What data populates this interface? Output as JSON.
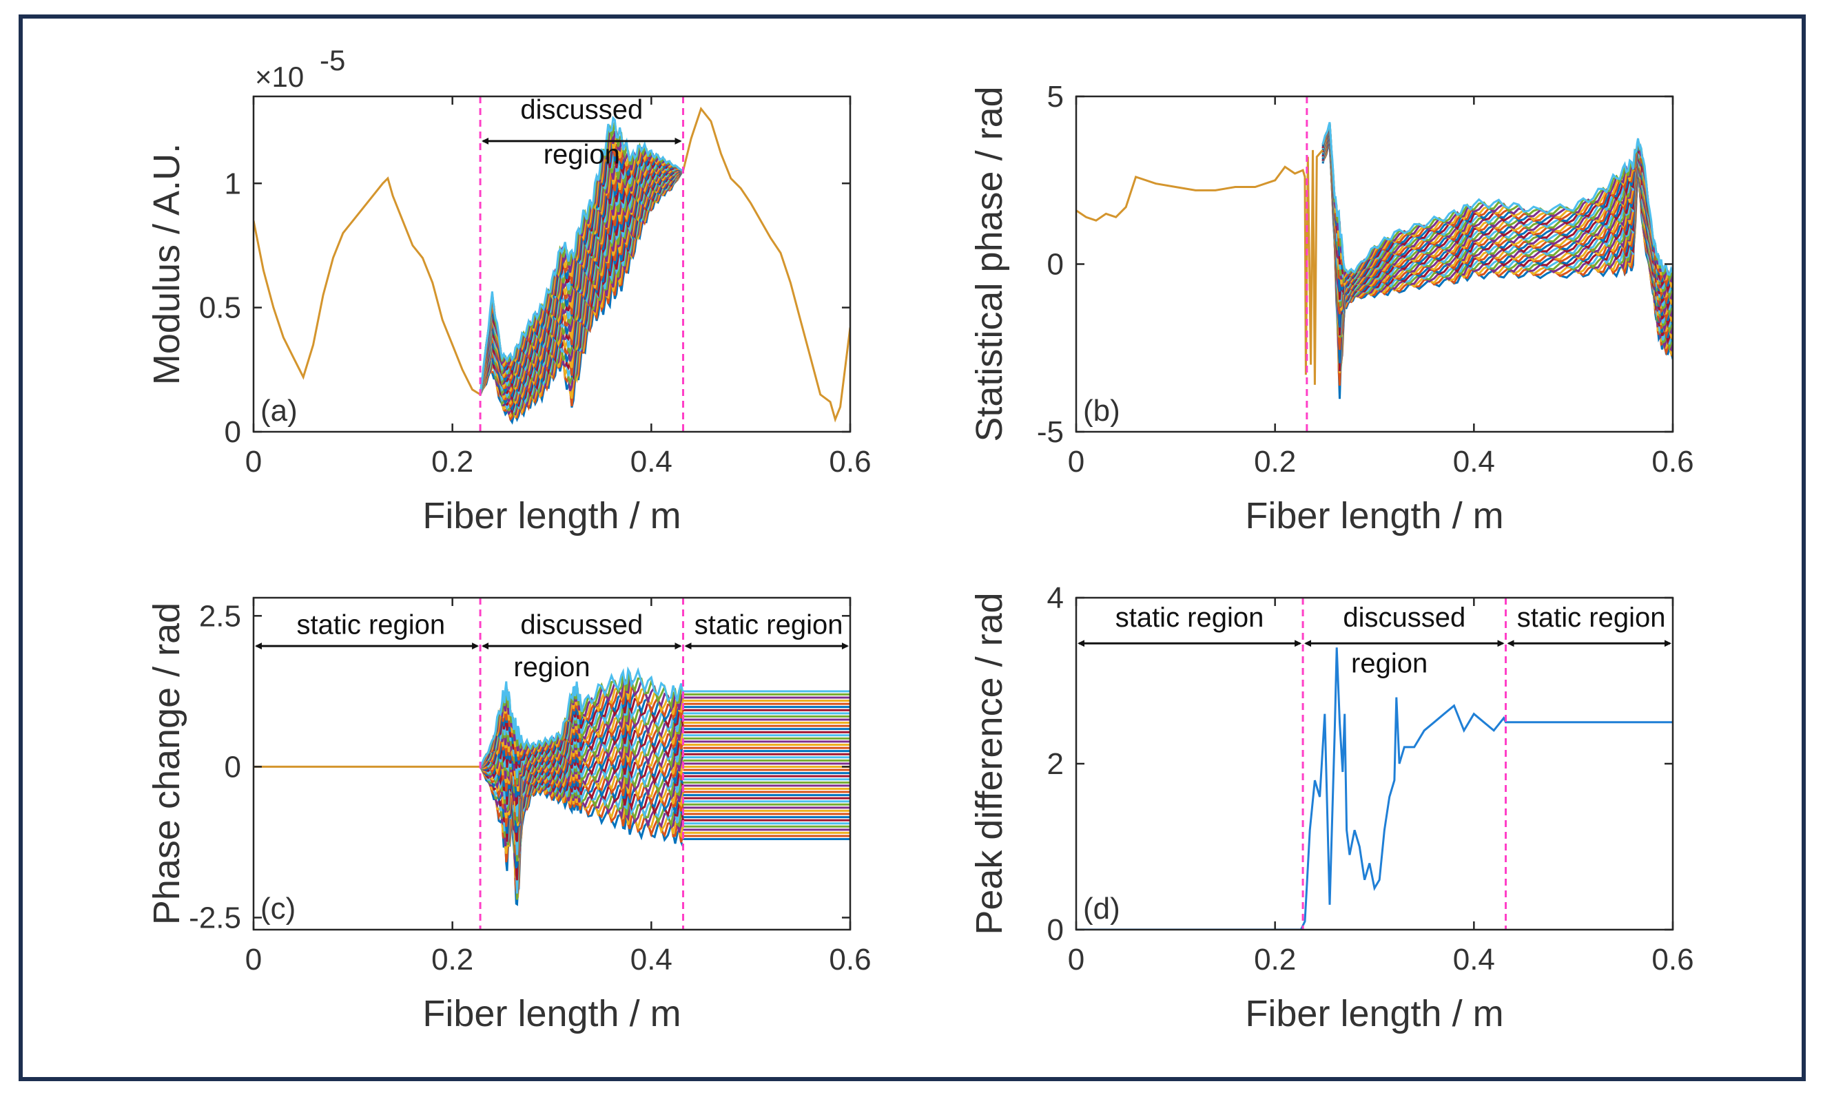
{
  "figure": {
    "colors": {
      "frame": "#1d2f50",
      "axis": "#262626",
      "divider": "#ff3fc7",
      "single_trace": "#d4952d",
      "peak_trace": "#1f7fd6",
      "palette": [
        "#0072BD",
        "#D95319",
        "#EDB120",
        "#7E2F8E",
        "#77AC30",
        "#4DBEEE",
        "#A2142F"
      ]
    }
  },
  "chart_data": [
    {
      "id": "a",
      "type": "line",
      "panel_tag": "(a)",
      "xlabel": "Fiber length / m",
      "ylabel": "Modulus / A.U.",
      "exponent_label": "×10",
      "exponent_power": "-5",
      "xlim": [
        0,
        0.6
      ],
      "ylim": [
        0,
        1.35
      ],
      "xticks": [
        0,
        0.2,
        0.4,
        0.6
      ],
      "xtick_labels": [
        "0",
        "0.2",
        "0.4",
        "0.6"
      ],
      "yticks": [
        0,
        0.5,
        1
      ],
      "ytick_labels": [
        "0",
        "0.5",
        "1"
      ],
      "dividers": [
        0.228,
        0.432
      ],
      "annotations": [
        {
          "text": "discussed",
          "x": 0.33,
          "y": 1.26
        },
        {
          "text": "region",
          "x": 0.33,
          "y": 1.08
        }
      ],
      "arrows": [
        {
          "x1": 0.228,
          "x2": 0.432,
          "y": 1.17
        }
      ],
      "single_trace": {
        "x": [
          0,
          0.01,
          0.02,
          0.03,
          0.04,
          0.05,
          0.06,
          0.07,
          0.08,
          0.09,
          0.1,
          0.11,
          0.12,
          0.13,
          0.135,
          0.14,
          0.15,
          0.16,
          0.17,
          0.18,
          0.19,
          0.2,
          0.21,
          0.22,
          0.228
        ],
        "y": [
          0.85,
          0.65,
          0.5,
          0.38,
          0.3,
          0.22,
          0.35,
          0.55,
          0.7,
          0.8,
          0.85,
          0.9,
          0.95,
          1.0,
          1.02,
          0.95,
          0.85,
          0.75,
          0.7,
          0.6,
          0.45,
          0.35,
          0.25,
          0.17,
          0.15
        ]
      },
      "band": {
        "x": [
          0.228,
          0.24,
          0.25,
          0.26,
          0.27,
          0.28,
          0.29,
          0.3,
          0.31,
          0.32,
          0.33,
          0.34,
          0.35,
          0.36,
          0.37,
          0.38,
          0.39,
          0.4,
          0.41,
          0.42,
          0.432
        ],
        "upper": [
          0.15,
          0.55,
          0.3,
          0.3,
          0.38,
          0.45,
          0.5,
          0.6,
          0.75,
          0.7,
          0.85,
          0.92,
          1.1,
          1.25,
          1.18,
          1.1,
          1.15,
          1.12,
          1.1,
          1.08,
          1.05
        ],
        "lower": [
          0.15,
          0.25,
          0.1,
          0.05,
          0.08,
          0.12,
          0.15,
          0.22,
          0.28,
          0.12,
          0.3,
          0.45,
          0.5,
          0.55,
          0.6,
          0.7,
          0.82,
          0.9,
          0.95,
          0.98,
          1.05
        ]
      },
      "tail_trace": {
        "x": [
          0.432,
          0.44,
          0.45,
          0.46,
          0.47,
          0.48,
          0.49,
          0.5,
          0.51,
          0.52,
          0.53,
          0.54,
          0.55,
          0.56,
          0.57,
          0.58,
          0.585,
          0.59,
          0.6
        ],
        "y": [
          1.05,
          1.18,
          1.3,
          1.25,
          1.12,
          1.02,
          0.98,
          0.92,
          0.85,
          0.78,
          0.72,
          0.6,
          0.45,
          0.3,
          0.15,
          0.12,
          0.05,
          0.1,
          0.42
        ]
      }
    },
    {
      "id": "b",
      "type": "line",
      "panel_tag": "(b)",
      "xlabel": "Fiber length / m",
      "ylabel": "Statistical phase / rad",
      "xlim": [
        0,
        0.6
      ],
      "ylim": [
        -5,
        5
      ],
      "xticks": [
        0,
        0.2,
        0.4,
        0.6
      ],
      "xtick_labels": [
        "0",
        "0.2",
        "0.4",
        "0.6"
      ],
      "yticks": [
        -5,
        0,
        5
      ],
      "ytick_labels": [
        "-5",
        "0",
        "5"
      ],
      "dividers": [
        0.232
      ],
      "single_trace": {
        "x": [
          0,
          0.01,
          0.02,
          0.03,
          0.04,
          0.05,
          0.06,
          0.08,
          0.1,
          0.12,
          0.14,
          0.16,
          0.18,
          0.2,
          0.21,
          0.22,
          0.228,
          0.23,
          0.231,
          0.233,
          0.236,
          0.238,
          0.24,
          0.242,
          0.245,
          0.248
        ],
        "y": [
          1.6,
          1.4,
          1.3,
          1.5,
          1.4,
          1.7,
          2.6,
          2.4,
          2.3,
          2.2,
          2.2,
          2.3,
          2.3,
          2.5,
          2.9,
          2.7,
          2.8,
          2.6,
          -3.3,
          3.2,
          -3.0,
          3.4,
          -3.6,
          3.2,
          3.3,
          3.4
        ]
      },
      "band": {
        "x": [
          0.248,
          0.255,
          0.26,
          0.265,
          0.27,
          0.28,
          0.3,
          0.32,
          0.35,
          0.38,
          0.4,
          0.43,
          0.46,
          0.5,
          0.53,
          0.55,
          0.56,
          0.565,
          0.57,
          0.58,
          0.585,
          0.59,
          0.6
        ],
        "upper": [
          3.6,
          4.2,
          2.0,
          1.2,
          -0.2,
          -0.2,
          0.5,
          0.9,
          1.2,
          1.5,
          1.8,
          1.8,
          1.6,
          1.7,
          2.2,
          2.8,
          3.0,
          3.7,
          3.2,
          0.8,
          0.2,
          -0.1,
          -0.3
        ],
        "lower": [
          3.0,
          3.6,
          0.5,
          -3.8,
          -1.3,
          -1.0,
          -0.9,
          -0.8,
          -0.6,
          -0.5,
          -0.3,
          -0.3,
          -0.3,
          -0.3,
          -0.2,
          -0.2,
          0.0,
          2.8,
          1.0,
          -0.8,
          -2.0,
          -2.5,
          -2.7
        ]
      }
    },
    {
      "id": "c",
      "type": "line",
      "panel_tag": "(c)",
      "xlabel": "Fiber length / m",
      "ylabel": "Phase change / rad",
      "xlim": [
        0,
        0.6
      ],
      "ylim": [
        -2.7,
        2.8
      ],
      "xticks": [
        0,
        0.2,
        0.4,
        0.6
      ],
      "xtick_labels": [
        "0",
        "0.2",
        "0.4",
        "0.6"
      ],
      "yticks": [
        -2.5,
        0,
        2.5
      ],
      "ytick_labels": [
        "-2.5",
        "0",
        "2.5"
      ],
      "dividers": [
        0.228,
        0.432
      ],
      "annotations": [
        {
          "text": "static region",
          "x": 0.118,
          "y": 2.2
        },
        {
          "text": "discussed",
          "x": 0.33,
          "y": 2.2
        },
        {
          "text": "region",
          "x": 0.3,
          "y": 1.5
        },
        {
          "text": "static region",
          "x": 0.518,
          "y": 2.2
        }
      ],
      "arrows": [
        {
          "x1": 0.0,
          "x2": 0.228,
          "y": 2.0
        },
        {
          "x1": 0.228,
          "x2": 0.432,
          "y": 2.0
        },
        {
          "x1": 0.432,
          "x2": 0.6,
          "y": 2.0
        }
      ],
      "single_trace": {
        "x": [
          0,
          0.228
        ],
        "y": [
          0,
          0
        ]
      },
      "band": {
        "x": [
          0.228,
          0.24,
          0.25,
          0.255,
          0.26,
          0.265,
          0.27,
          0.28,
          0.29,
          0.3,
          0.31,
          0.32,
          0.325,
          0.33,
          0.35,
          0.37,
          0.38,
          0.4,
          0.42,
          0.432
        ],
        "upper": [
          0.0,
          0.4,
          1.1,
          1.3,
          0.8,
          0.6,
          0.4,
          0.35,
          0.4,
          0.45,
          0.55,
          1.2,
          1.3,
          1.0,
          1.3,
          1.45,
          1.5,
          1.35,
          1.2,
          1.25
        ],
        "lower": [
          0.0,
          -0.4,
          -1.0,
          -1.6,
          -0.8,
          -2.4,
          -0.9,
          -0.45,
          -0.4,
          -0.5,
          -0.55,
          -0.65,
          -0.6,
          -0.7,
          -0.8,
          -0.9,
          -1.0,
          -1.05,
          -1.1,
          -1.2
        ]
      },
      "constant_band": {
        "x_start": 0.432,
        "x_end": 0.6,
        "upper": 1.25,
        "lower": -1.2,
        "line_count": 48
      }
    },
    {
      "id": "d",
      "type": "line",
      "panel_tag": "(d)",
      "xlabel": "Fiber length / m",
      "ylabel": "Peak difference / rad",
      "xlim": [
        0,
        0.6
      ],
      "ylim": [
        0,
        4
      ],
      "xticks": [
        0,
        0.2,
        0.4,
        0.6
      ],
      "xtick_labels": [
        "0",
        "0.2",
        "0.4",
        "0.6"
      ],
      "yticks": [
        0,
        2,
        4
      ],
      "ytick_labels": [
        "0",
        "2",
        "4"
      ],
      "dividers": [
        0.228,
        0.432
      ],
      "annotations": [
        {
          "text": "static region",
          "x": 0.114,
          "y": 3.65
        },
        {
          "text": "discussed",
          "x": 0.33,
          "y": 3.65
        },
        {
          "text": "region",
          "x": 0.315,
          "y": 3.1
        },
        {
          "text": "static region",
          "x": 0.518,
          "y": 3.65
        }
      ],
      "arrows": [
        {
          "x1": 0.0,
          "x2": 0.228,
          "y": 3.45
        },
        {
          "x1": 0.228,
          "x2": 0.432,
          "y": 3.45
        },
        {
          "x1": 0.432,
          "x2": 0.6,
          "y": 3.45
        }
      ],
      "series": [
        {
          "name": "peak difference",
          "x": [
            0,
            0.226,
            0.23,
            0.235,
            0.24,
            0.245,
            0.25,
            0.255,
            0.26,
            0.262,
            0.265,
            0.268,
            0.27,
            0.272,
            0.275,
            0.28,
            0.285,
            0.29,
            0.295,
            0.3,
            0.305,
            0.31,
            0.315,
            0.32,
            0.322,
            0.325,
            0.33,
            0.34,
            0.35,
            0.36,
            0.37,
            0.38,
            0.39,
            0.4,
            0.41,
            0.42,
            0.43,
            0.432,
            0.6
          ],
          "y": [
            0,
            0,
            0.1,
            1.2,
            1.8,
            1.6,
            2.6,
            0.3,
            2.4,
            3.4,
            2.5,
            1.9,
            2.6,
            1.2,
            0.9,
            1.2,
            1.0,
            0.6,
            0.8,
            0.5,
            0.6,
            1.2,
            1.6,
            1.8,
            2.8,
            2.0,
            2.2,
            2.2,
            2.4,
            2.5,
            2.6,
            2.7,
            2.4,
            2.6,
            2.5,
            2.4,
            2.55,
            2.5,
            2.5
          ]
        }
      ]
    }
  ]
}
